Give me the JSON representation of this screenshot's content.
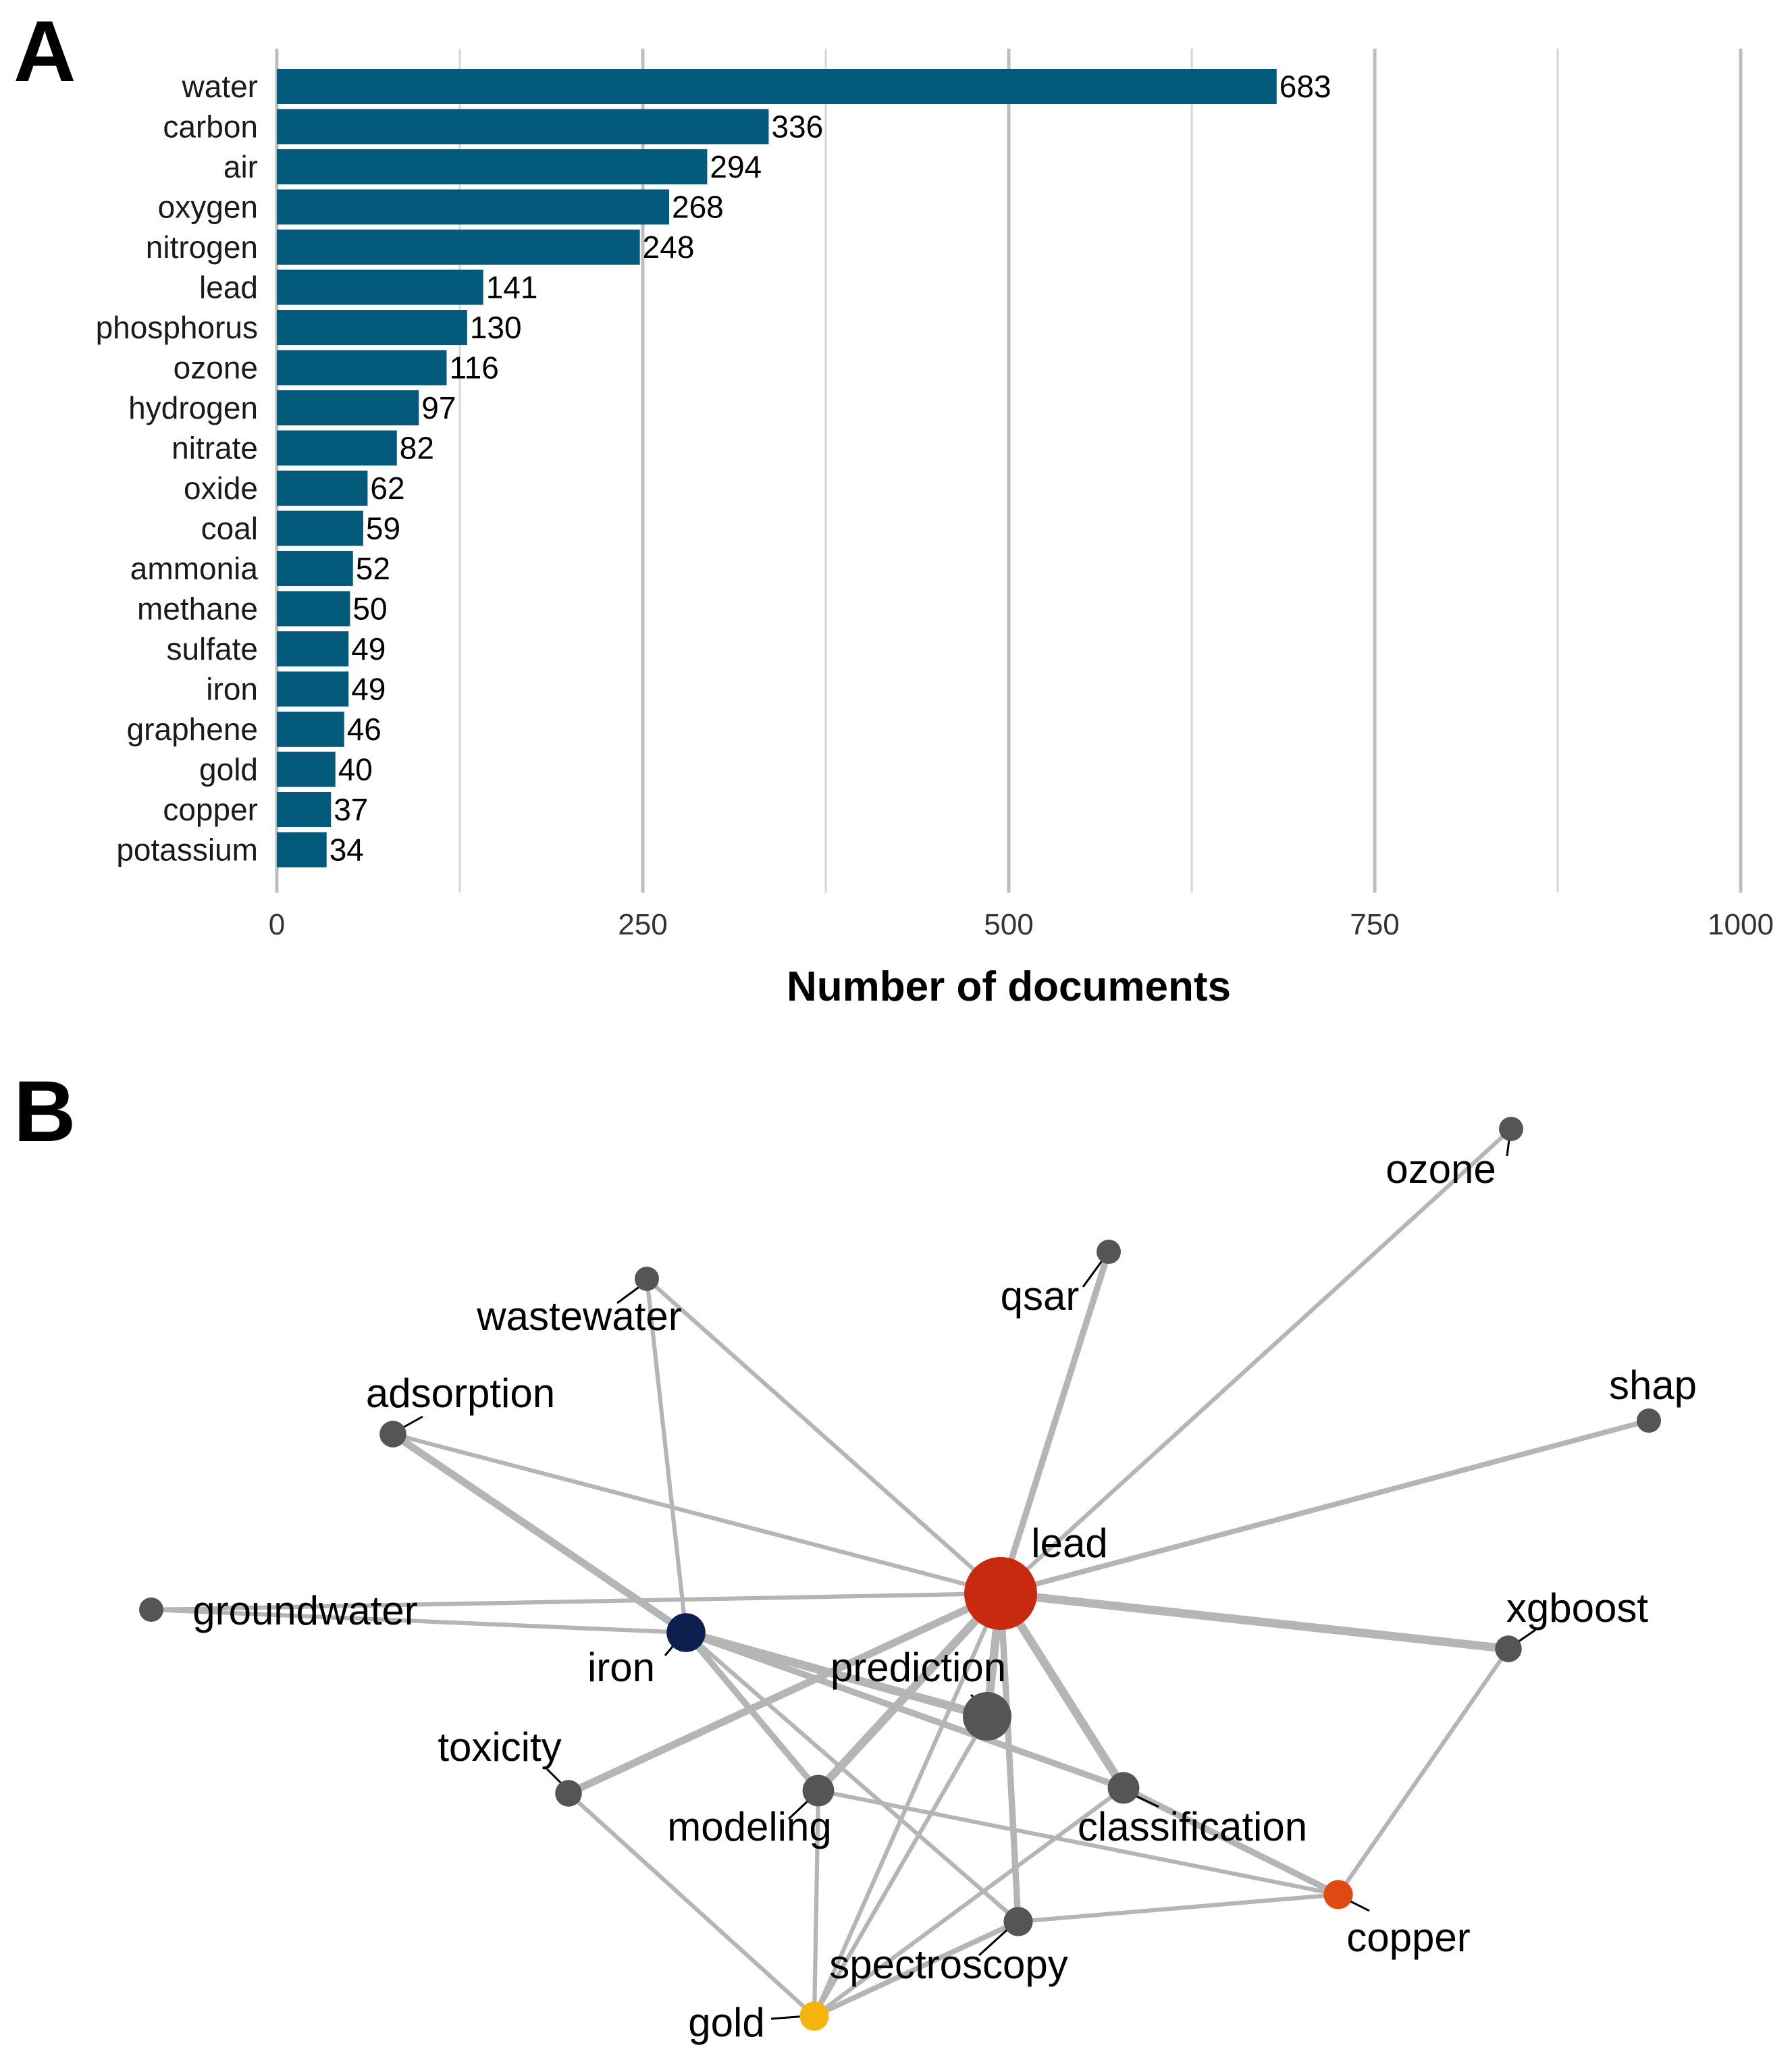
{
  "panel_a_letter": "A",
  "panel_b_letter": "B",
  "chart_data": [
    {
      "type": "bar",
      "orientation": "horizontal",
      "categories": [
        "water",
        "carbon",
        "air",
        "oxygen",
        "nitrogen",
        "lead",
        "phosphorus",
        "ozone",
        "hydrogen",
        "nitrate",
        "oxide",
        "coal",
        "ammonia",
        "methane",
        "sulfate",
        "iron",
        "graphene",
        "gold",
        "copper",
        "potassium"
      ],
      "values": [
        683,
        336,
        294,
        268,
        248,
        141,
        130,
        116,
        97,
        82,
        62,
        59,
        52,
        50,
        49,
        49,
        46,
        40,
        37,
        34
      ],
      "xlabel": "Number of documents",
      "ylabel": "",
      "xlim": [
        0,
        1000
      ],
      "xticks": [
        0,
        250,
        500,
        750,
        1000
      ],
      "bar_color": "#045a7a",
      "grid": true
    },
    {
      "type": "network",
      "nodes": [
        {
          "id": "lead",
          "label": "lead",
          "color": "#c8290f",
          "size": 3
        },
        {
          "id": "prediction",
          "label": "prediction",
          "color": "#555555",
          "size": 2
        },
        {
          "id": "iron",
          "label": "iron",
          "color": "#0c1f4f",
          "size": 1.6
        },
        {
          "id": "classification",
          "label": "classification",
          "color": "#555555",
          "size": 1.3
        },
        {
          "id": "modeling",
          "label": "modeling",
          "color": "#555555",
          "size": 1.3
        },
        {
          "id": "copper",
          "label": "copper",
          "color": "#e04a10",
          "size": 1.2
        },
        {
          "id": "gold",
          "label": "gold",
          "color": "#f6b40c",
          "size": 1.2
        },
        {
          "id": "spectroscopy",
          "label": "spectroscopy",
          "color": "#555555",
          "size": 1.2
        },
        {
          "id": "xgboost",
          "label": "xgboost",
          "color": "#555555",
          "size": 1.1
        },
        {
          "id": "toxicity",
          "label": "toxicity",
          "color": "#555555",
          "size": 1.1
        },
        {
          "id": "adsorption",
          "label": "adsorption",
          "color": "#555555",
          "size": 1.1
        },
        {
          "id": "groundwater",
          "label": "groundwater",
          "color": "#555555",
          "size": 1
        },
        {
          "id": "wastewater",
          "label": "wastewater",
          "color": "#555555",
          "size": 1
        },
        {
          "id": "qsar",
          "label": "qsar",
          "color": "#555555",
          "size": 1
        },
        {
          "id": "ozone",
          "label": "ozone",
          "color": "#555555",
          "size": 1
        },
        {
          "id": "shap",
          "label": "shap",
          "color": "#555555",
          "size": 1
        }
      ],
      "edges": [
        {
          "source": "lead",
          "target": "xgboost",
          "weight": 3
        },
        {
          "source": "lead",
          "target": "prediction",
          "weight": 3
        },
        {
          "source": "lead",
          "target": "classification",
          "weight": 3
        },
        {
          "source": "lead",
          "target": "modeling",
          "weight": 3
        },
        {
          "source": "lead",
          "target": "toxicity",
          "weight": 2.5
        },
        {
          "source": "lead",
          "target": "qsar",
          "weight": 2
        },
        {
          "source": "lead",
          "target": "spectroscopy",
          "weight": 2
        },
        {
          "source": "lead",
          "target": "shap",
          "weight": 1.5
        },
        {
          "source": "lead",
          "target": "ozone",
          "weight": 1
        },
        {
          "source": "lead",
          "target": "wastewater",
          "weight": 1
        },
        {
          "source": "lead",
          "target": "adsorption",
          "weight": 1
        },
        {
          "source": "lead",
          "target": "groundwater",
          "weight": 1
        },
        {
          "source": "lead",
          "target": "gold",
          "weight": 1
        },
        {
          "source": "iron",
          "target": "prediction",
          "weight": 3
        },
        {
          "source": "iron",
          "target": "classification",
          "weight": 2
        },
        {
          "source": "iron",
          "target": "adsorption",
          "weight": 2.5
        },
        {
          "source": "iron",
          "target": "modeling",
          "weight": 2
        },
        {
          "source": "iron",
          "target": "spectroscopy",
          "weight": 1
        },
        {
          "source": "iron",
          "target": "wastewater",
          "weight": 1
        },
        {
          "source": "iron",
          "target": "groundwater",
          "weight": 1
        },
        {
          "source": "prediction",
          "target": "gold",
          "weight": 1
        },
        {
          "source": "classification",
          "target": "copper",
          "weight": 2
        },
        {
          "source": "classification",
          "target": "gold",
          "weight": 1
        },
        {
          "source": "modeling",
          "target": "copper",
          "weight": 1
        },
        {
          "source": "modeling",
          "target": "gold",
          "weight": 1
        },
        {
          "source": "copper",
          "target": "xgboost",
          "weight": 1
        },
        {
          "source": "copper",
          "target": "spectroscopy",
          "weight": 1
        },
        {
          "source": "spectroscopy",
          "target": "gold",
          "weight": 1.5
        },
        {
          "source": "toxicity",
          "target": "gold",
          "weight": 1
        }
      ]
    }
  ]
}
